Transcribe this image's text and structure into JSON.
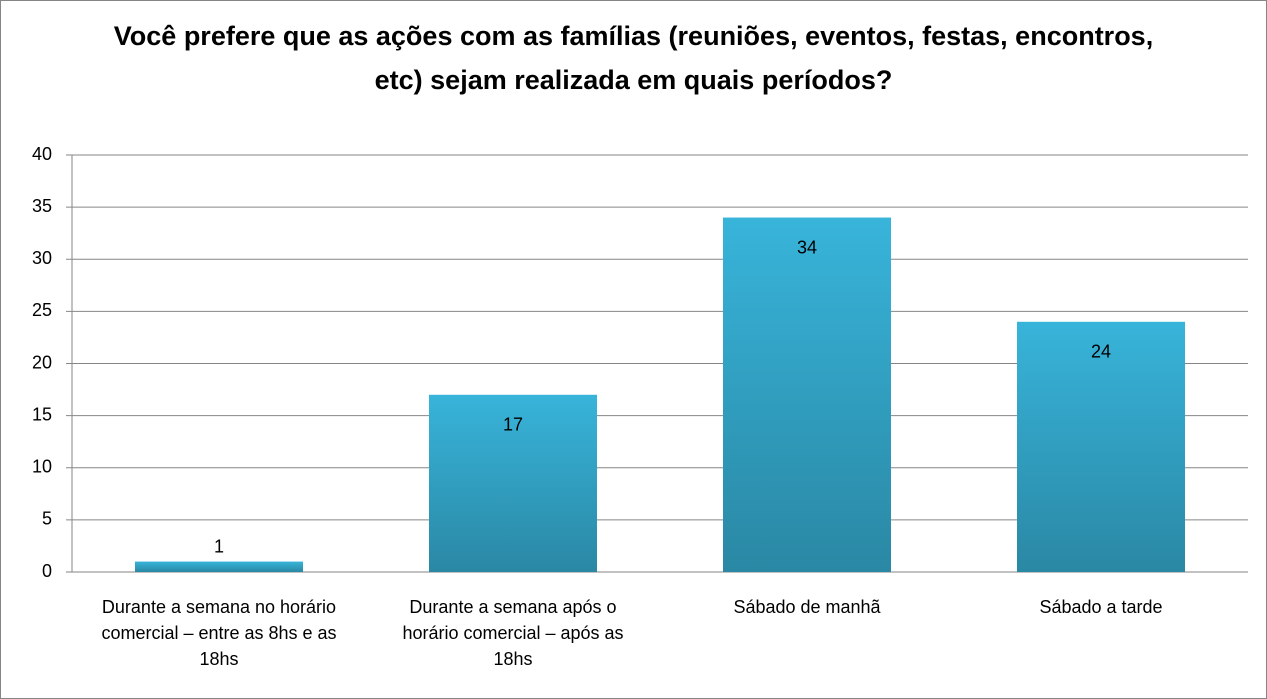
{
  "chart_data": {
    "type": "bar",
    "title": "Você prefere que as ações com as famílias (reuniões, eventos, festas, encontros, etc) sejam realizada em quais períodos?",
    "categories": [
      "Durante a semana no horário comercial – entre as 8hs e as 18hs",
      "Durante a semana após o horário comercial – após as 18hs",
      "Sábado de manhã",
      "Sábado a tarde"
    ],
    "values": [
      1,
      17,
      34,
      24
    ],
    "color": "#31a7cb",
    "ylim": [
      0,
      40
    ],
    "yticks": [
      0,
      5,
      10,
      15,
      20,
      25,
      30,
      35,
      40
    ],
    "grid": true
  }
}
